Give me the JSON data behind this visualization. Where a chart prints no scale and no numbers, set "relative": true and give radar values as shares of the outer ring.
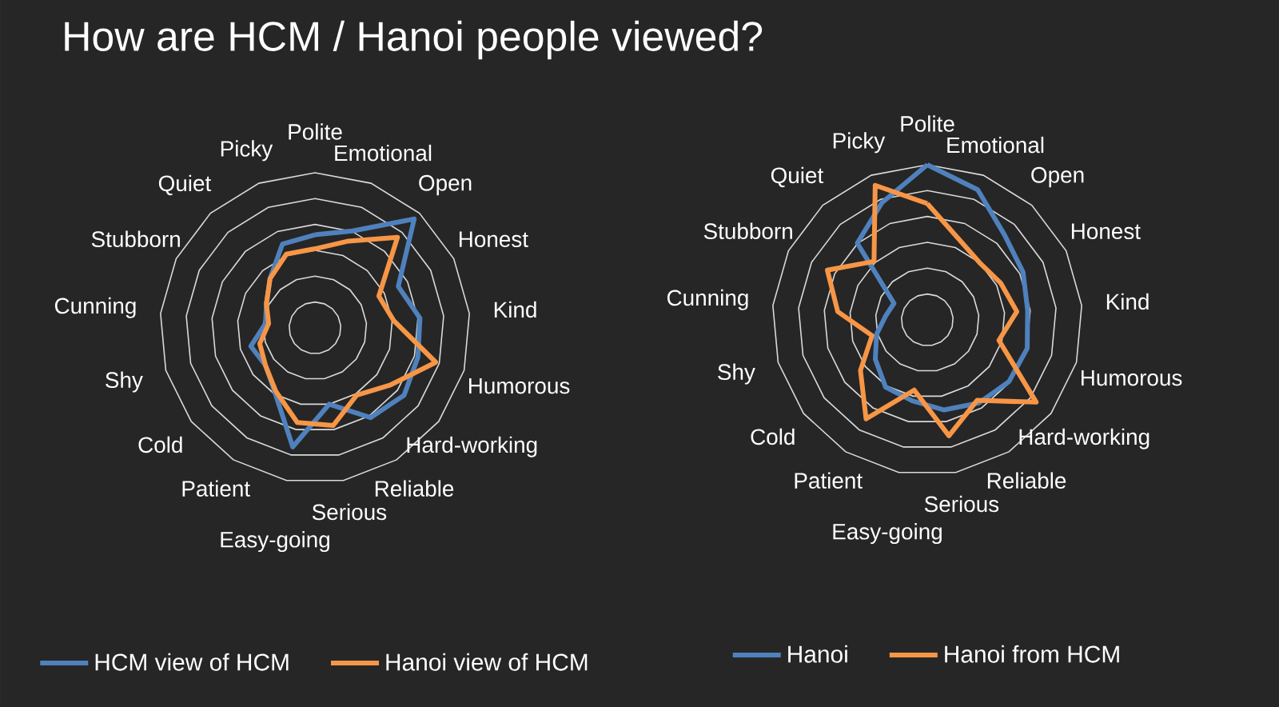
{
  "chart_data": [
    {
      "type": "radar",
      "title": "How are HCM / Hanoi people viewed?",
      "relative": true,
      "grid": true,
      "legend": "bottom",
      "categories": [
        "Polite",
        "Emotional",
        "Open",
        "Honest",
        "Kind",
        "Humorous",
        "Hard-working",
        "Reliable",
        "Serious",
        "Easy-going",
        "Patient",
        "Cold",
        "Shy",
        "Cunning",
        "Stubborn",
        "Quiet",
        "Picky"
      ],
      "series": [
        {
          "name": "HCM view of HCM",
          "color": "#4f81bd",
          "values": [
            0.6,
            0.67,
            0.95,
            0.6,
            0.68,
            0.69,
            0.72,
            0.68,
            0.5,
            0.78,
            0.49,
            0.4,
            0.43,
            0.32,
            0.35,
            0.43,
            0.58
          ]
        },
        {
          "name": "Hanoi view of HCM",
          "color": "#f79646",
          "values": [
            0.51,
            0.6,
            0.79,
            0.46,
            0.51,
            0.81,
            0.61,
            0.51,
            0.64,
            0.62,
            0.48,
            0.4,
            0.37,
            0.3,
            0.35,
            0.43,
            0.51
          ]
        }
      ]
    },
    {
      "type": "radar",
      "relative": true,
      "grid": true,
      "legend": "bottom",
      "categories": [
        "Polite",
        "Emotional",
        "Open",
        "Honest",
        "Kind",
        "Humorous",
        "Hard-working",
        "Reliable",
        "Serious",
        "Easy-going",
        "Patient",
        "Cold",
        "Shy",
        "Cunning",
        "Stubborn",
        "Quiet",
        "Picky"
      ],
      "series": [
        {
          "name": "Hanoi",
          "color": "#4f81bd",
          "values": [
            1.0,
            0.9,
            0.74,
            0.69,
            0.65,
            0.67,
            0.66,
            0.63,
            0.59,
            0.53,
            0.51,
            0.42,
            0.34,
            0.27,
            0.24,
            0.67,
            0.81
          ]
        },
        {
          "name": "Hanoi from HCM",
          "color": "#f79646",
          "values": [
            0.75,
            0.56,
            0.5,
            0.53,
            0.58,
            0.48,
            0.88,
            0.61,
            0.76,
            0.46,
            0.75,
            0.54,
            0.37,
            0.58,
            0.72,
            0.51,
            0.93
          ]
        }
      ]
    }
  ]
}
